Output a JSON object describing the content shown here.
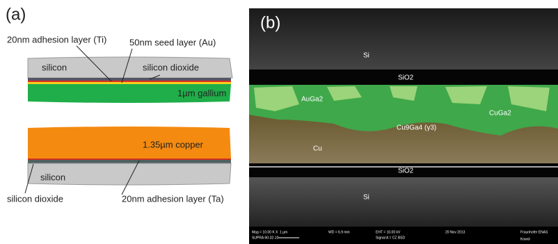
{
  "panel_a": {
    "label": "(a)",
    "top_stack": {
      "ti_label": "20nm adhesion layer (Ti)",
      "au_label": "50nm seed layer (Au)",
      "silicon": "silicon",
      "sio2": "silicon dioxide",
      "gallium": "1µm gallium"
    },
    "bottom_stack": {
      "copper": "1.35µm copper",
      "silicon": "silicon",
      "sio2": "silicon dioxide",
      "ta_label": "20nm adhesion layer (Ta)"
    }
  },
  "panel_b": {
    "label": "(b)",
    "regions": [
      "Si",
      "SiO2",
      "AuGa2",
      "CuGa2",
      "Cu9Ga4 (γ3)",
      "Cu",
      "SiO2",
      "Si"
    ],
    "info_bar": [
      "Mag = 10.00 K X",
      "1 µm",
      "WD = 6.9 mm",
      "EHT = 10.00 kV",
      "Signal A = CZ BSD",
      "20 Nov 2013",
      "Fraunhofer ENAS",
      "SUPRA 60-32-10",
      "Kowol"
    ]
  }
}
